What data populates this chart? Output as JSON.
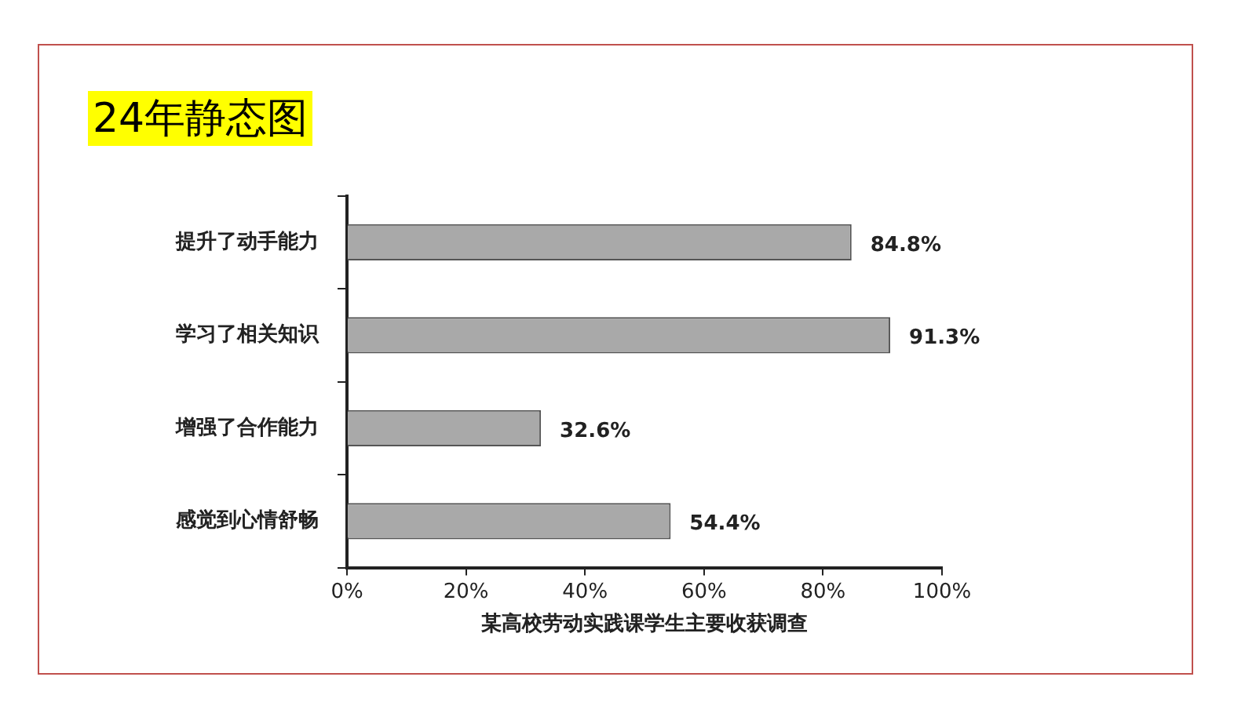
{
  "chart_data": {
    "type": "bar",
    "orientation": "horizontal",
    "title": "24年静态图",
    "xlabel": "某高校劳动实践课学生主要收获调查",
    "categories": [
      "提升了动手能力",
      "学习了相关知识",
      "增强了合作能力",
      "感觉到心情舒畅"
    ],
    "values": [
      84.8,
      91.3,
      32.6,
      54.4
    ],
    "value_labels": [
      "84.8%",
      "91.3%",
      "32.6%",
      "54.4%"
    ],
    "color": "#a9a9a9",
    "xlim": [
      0,
      100
    ],
    "xticks": [
      {
        "value": 0,
        "label": "0%"
      },
      {
        "value": 20,
        "label": "20%"
      },
      {
        "value": 40,
        "label": "40%"
      },
      {
        "value": 60,
        "label": "60%"
      },
      {
        "value": 80,
        "label": "80%"
      },
      {
        "value": 100,
        "label": "100%"
      }
    ],
    "grid": false
  }
}
